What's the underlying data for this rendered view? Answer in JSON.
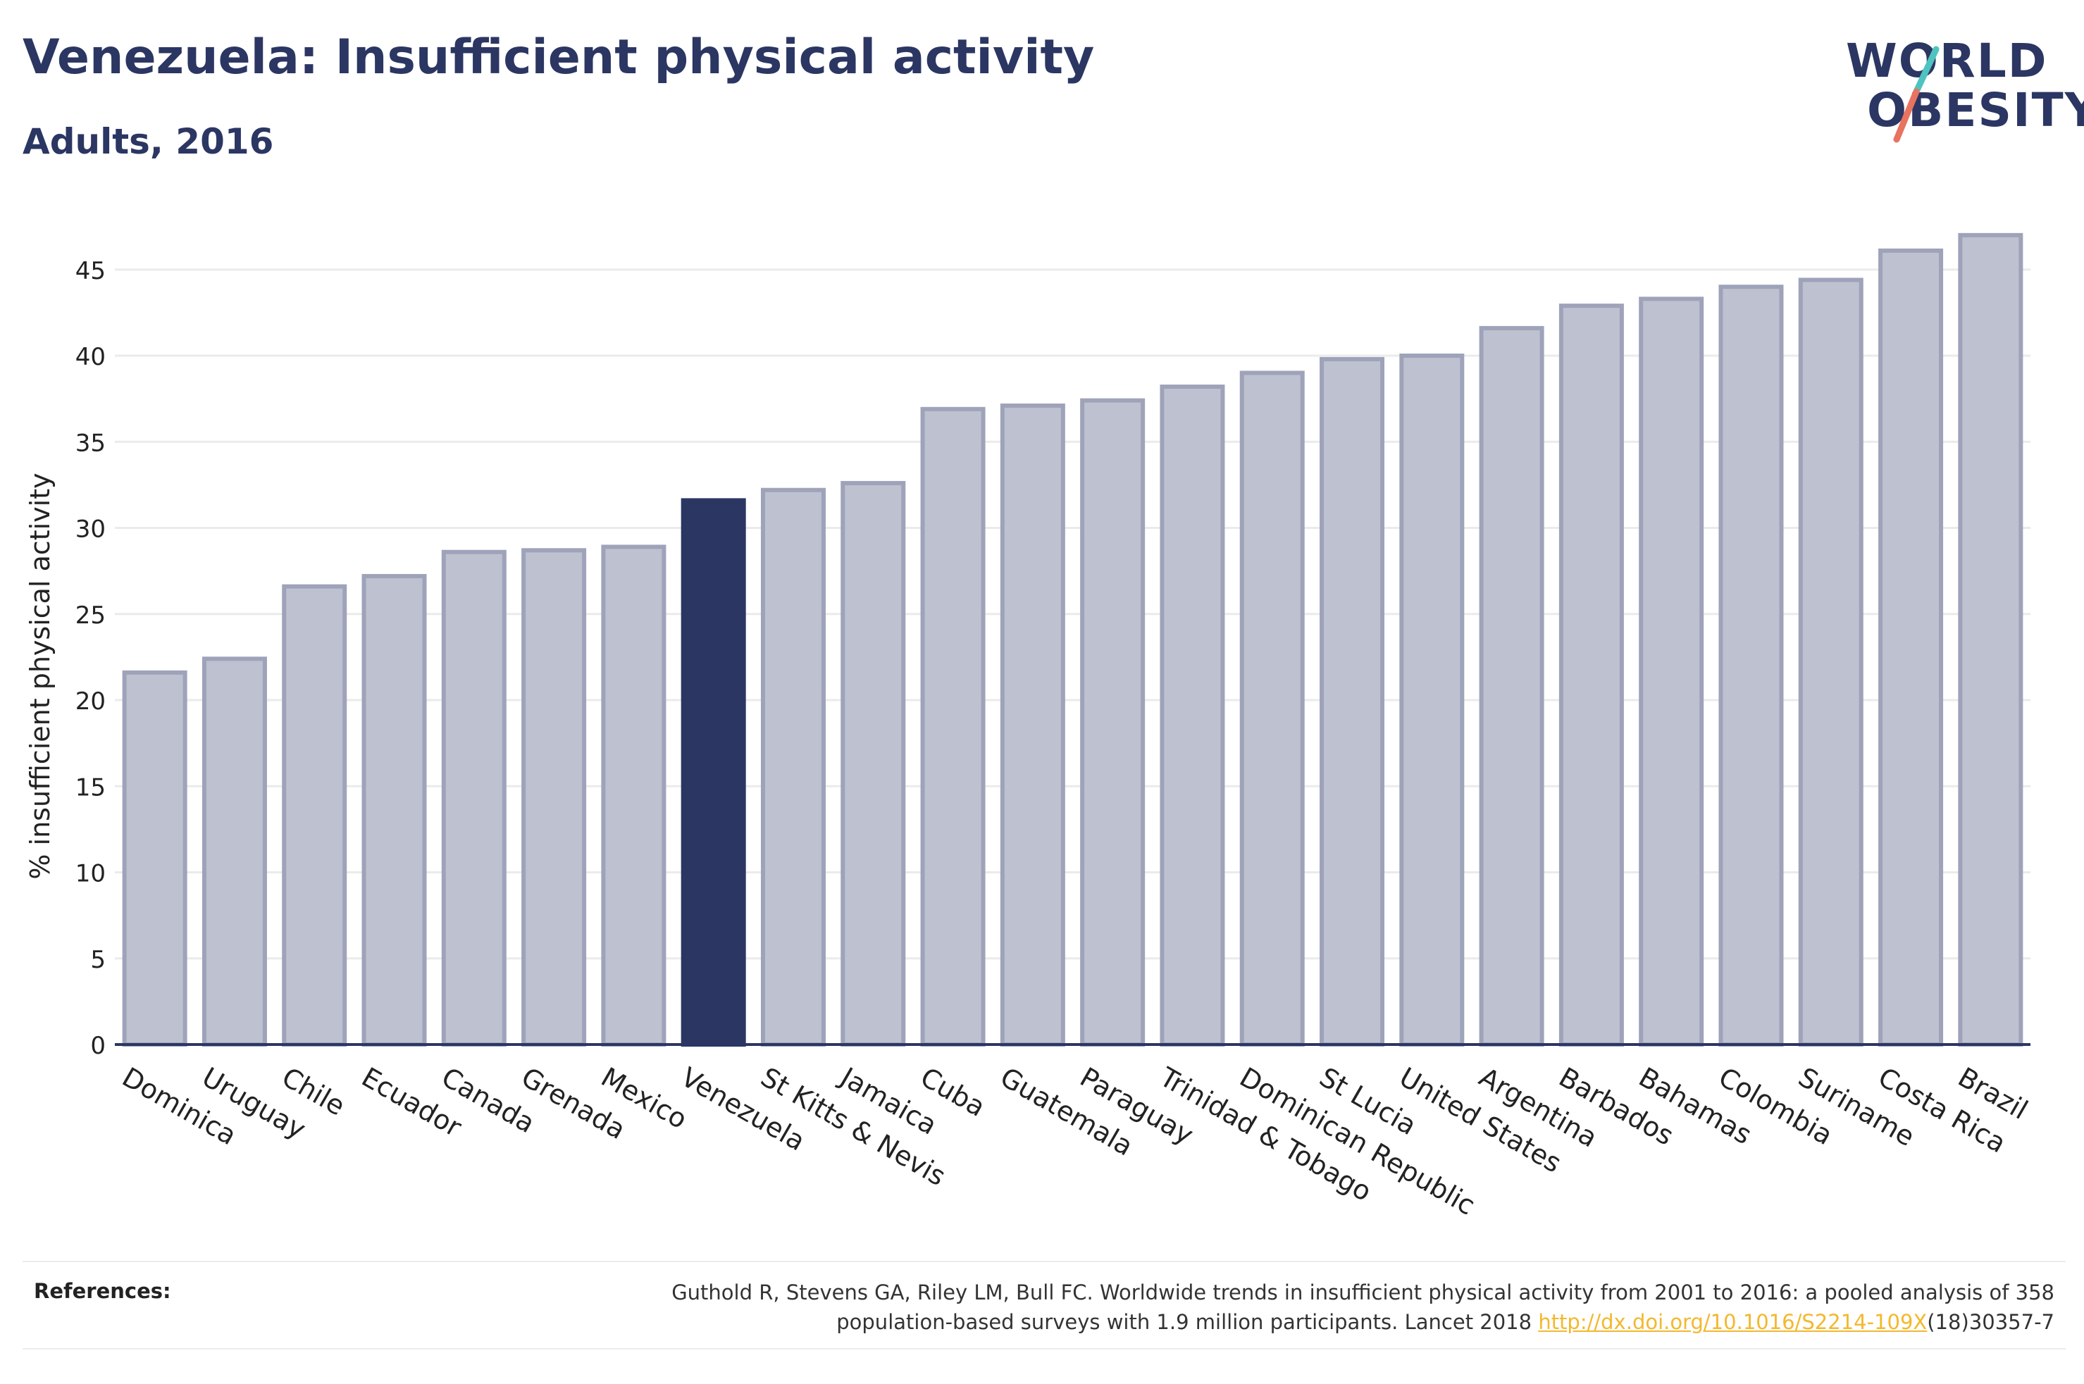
{
  "header": {
    "title": "Venezuela: Insufficient physical activity",
    "subtitle": "Adults, 2016"
  },
  "logo": {
    "line1": "WORLD",
    "line2": "OBESITY",
    "slash_colors": [
      "#4ec3c0",
      "#e8735f"
    ]
  },
  "references": {
    "label": "References:",
    "text_line1": "Guthold R, Stevens GA, Riley LM, Bull FC. Worldwide trends in insufficient physical activity from 2001 to 2016: a pooled analysis of 358",
    "text_line2_before": "population-based surveys with 1.9 million participants. Lancet 2018 ",
    "link": "http://dx.doi.org/10.1016/S2214-109X",
    "text_line2_after": "(18)30357-7"
  },
  "colors": {
    "highlight": "#2b3663",
    "bar_fill": "#bec1cf",
    "bar_stroke": "#9ea3ba",
    "grid": "#ebebeb",
    "axis": "#2b3663"
  },
  "chart_data": {
    "type": "bar",
    "title": "Venezuela: Insufficient physical activity",
    "subtitle": "Adults, 2016",
    "xlabel": "",
    "ylabel": "% insufficient physical activity",
    "ylim": [
      0,
      48
    ],
    "yticks": [
      0,
      5,
      10,
      15,
      20,
      25,
      30,
      35,
      40,
      45
    ],
    "grid": true,
    "highlight": "Venezuela",
    "categories": [
      "Dominica",
      "Uruguay",
      "Chile",
      "Ecuador",
      "Canada",
      "Grenada",
      "Mexico",
      "Venezuela",
      "St Kitts & Nevis",
      "Jamaica",
      "Cuba",
      "Guatemala",
      "Paraguay",
      "Trinidad & Tobago",
      "Dominican Republic",
      "St Lucia",
      "United States",
      "Argentina",
      "Barbados",
      "Bahamas",
      "Colombia",
      "Suriname",
      "Costa Rica",
      "Brazil"
    ],
    "values": [
      21.6,
      22.4,
      26.6,
      27.2,
      28.6,
      28.7,
      28.9,
      31.6,
      32.2,
      32.6,
      36.9,
      37.1,
      37.4,
      38.2,
      39.0,
      39.8,
      40.0,
      41.6,
      42.9,
      43.3,
      44.0,
      44.4,
      46.1,
      47.0
    ]
  }
}
